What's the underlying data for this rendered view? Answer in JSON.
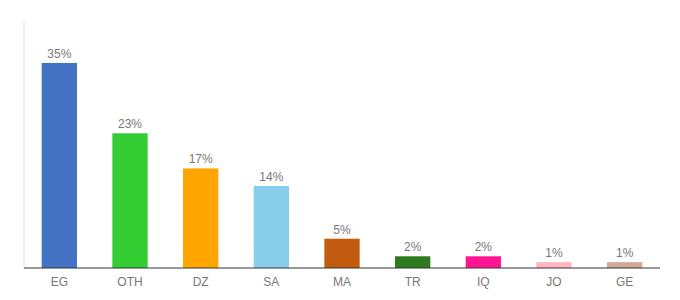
{
  "chart_data": {
    "type": "bar",
    "categories": [
      "EG",
      "OTH",
      "DZ",
      "SA",
      "MA",
      "TR",
      "IQ",
      "JO",
      "GE"
    ],
    "values": [
      35,
      23,
      17,
      14,
      5,
      2,
      2,
      1,
      1
    ],
    "value_labels": [
      "35%",
      "23%",
      "17%",
      "14%",
      "5%",
      "2%",
      "2%",
      "1%",
      "1%"
    ],
    "colors": [
      "#4472C4",
      "#33CC33",
      "#FFA500",
      "#87CEEB",
      "#C25A10",
      "#2E7B1E",
      "#FF1493",
      "#FFB6C1",
      "#D2A898"
    ],
    "ylim": [
      0,
      42
    ],
    "data_labels": true,
    "tick_labels": "x"
  }
}
